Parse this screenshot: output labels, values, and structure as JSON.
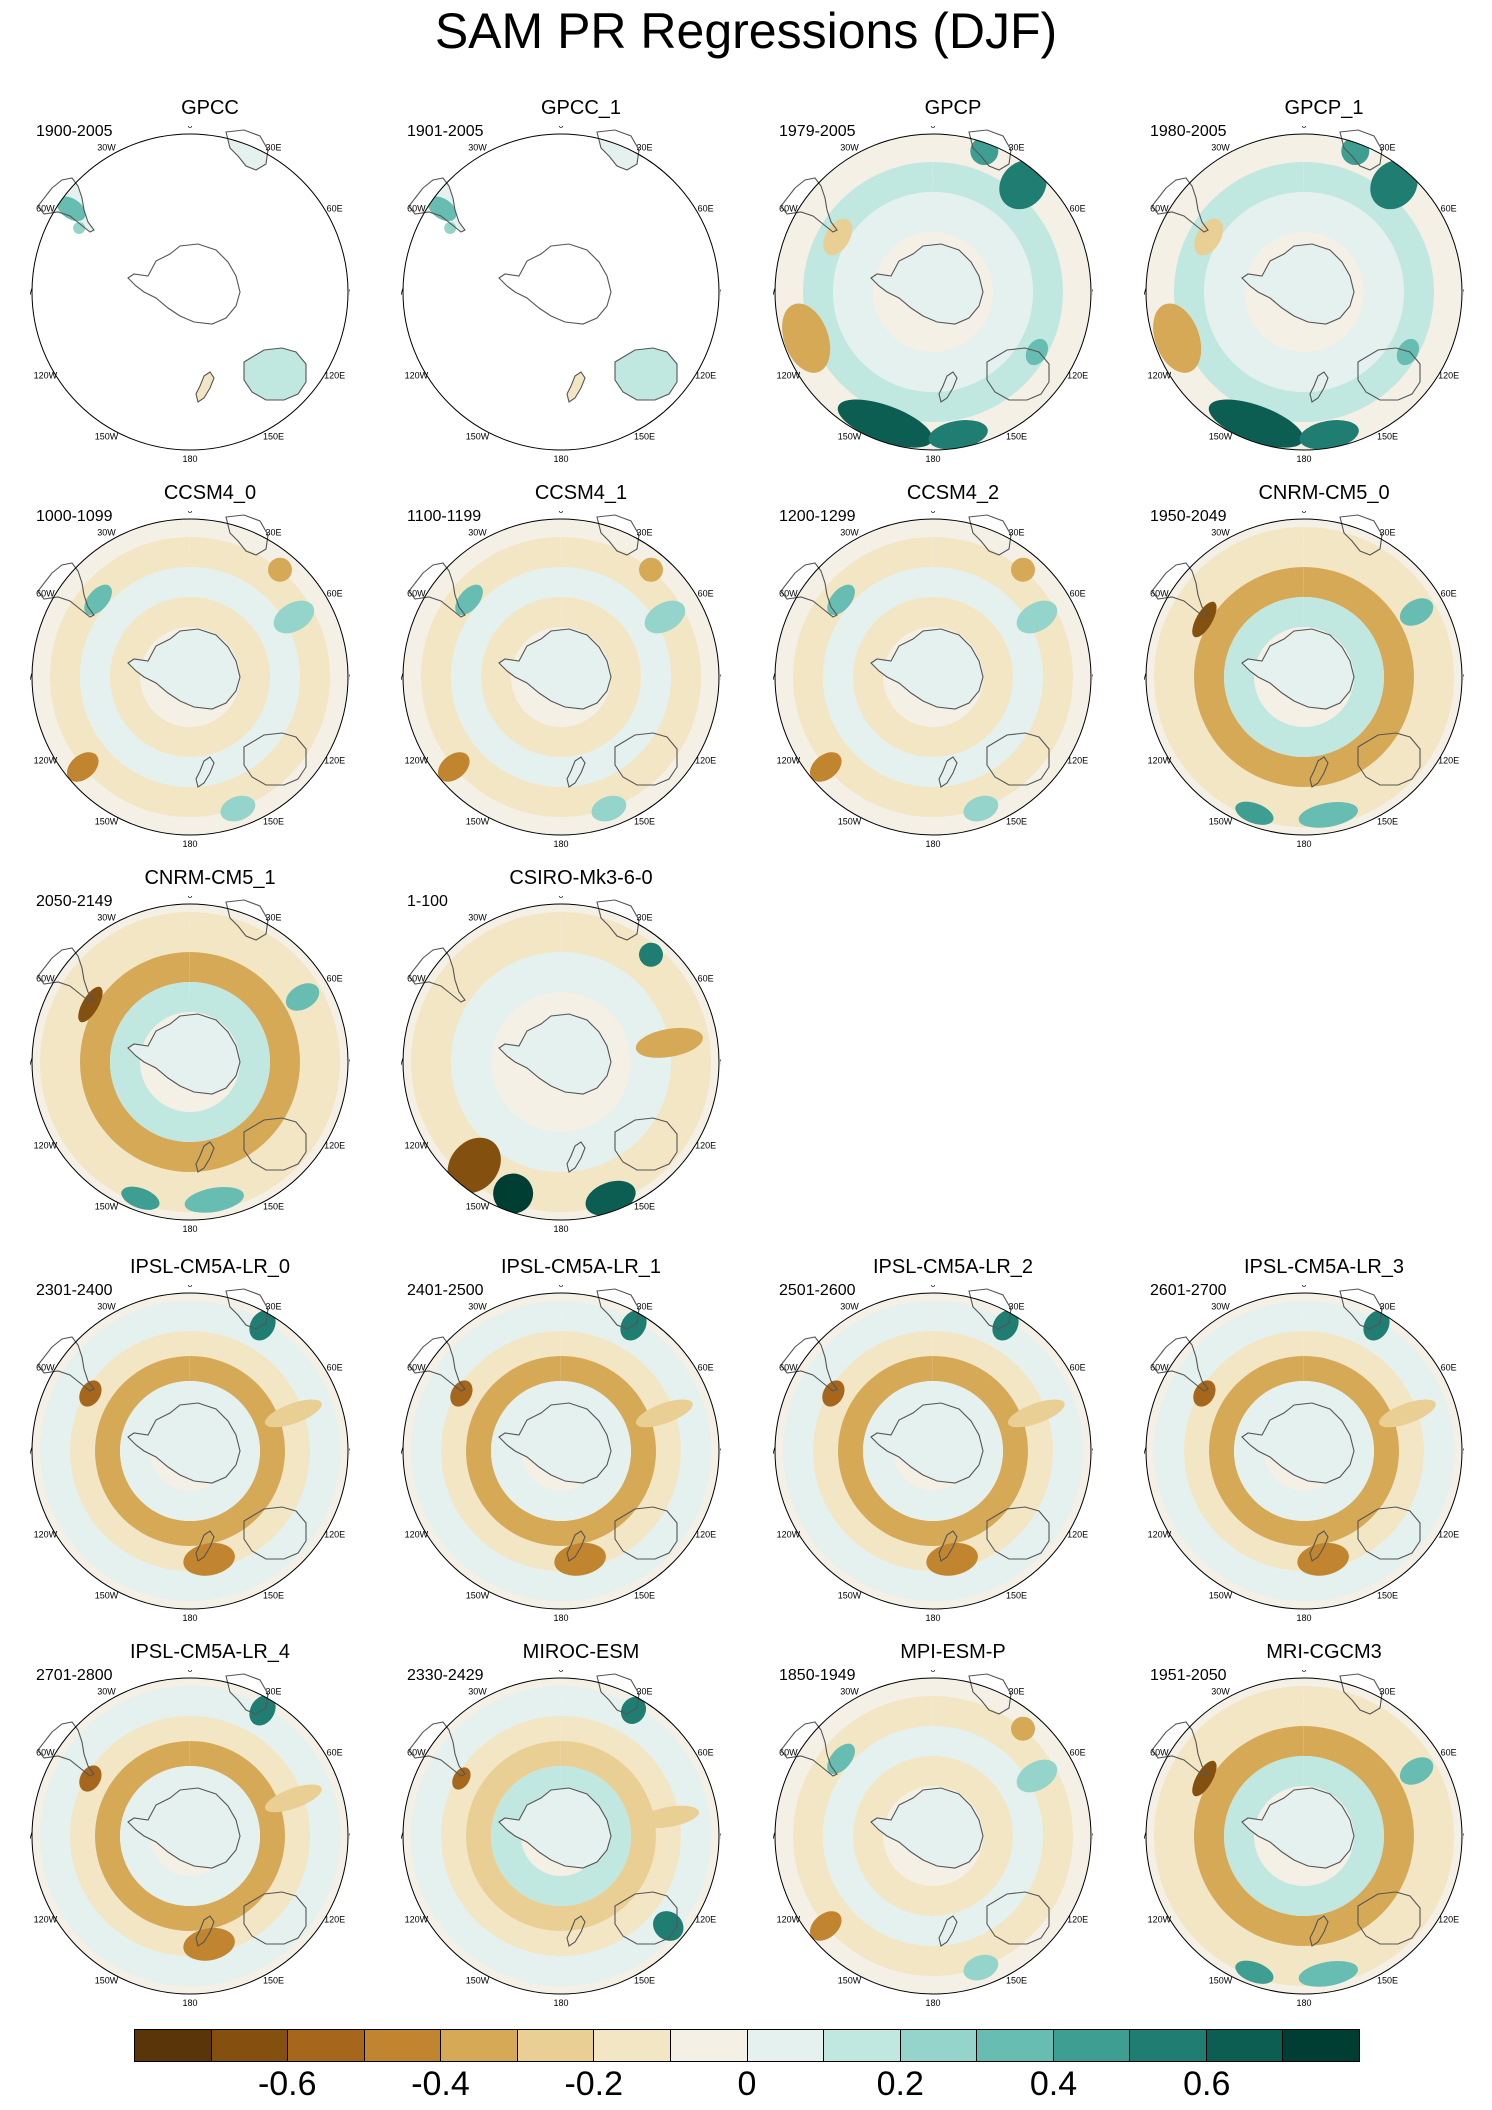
{
  "title": "SAM PR Regressions (DJF)",
  "map_labels": [
    "0",
    "30E",
    "60E",
    "90E",
    "120E",
    "150E",
    "180",
    "150W",
    "120W",
    "90W",
    "60W",
    "30W"
  ],
  "panels": [
    {
      "name": "GPCC",
      "years": "1900-2005",
      "fill": "land",
      "style": 0
    },
    {
      "name": "GPCC_1",
      "years": "1901-2005",
      "fill": "land",
      "style": 0
    },
    {
      "name": "GPCP",
      "years": "1979-2005",
      "fill": "full",
      "style": 1
    },
    {
      "name": "GPCP_1",
      "years": "1980-2005",
      "fill": "full",
      "style": 1
    },
    {
      "name": "CCSM4_0",
      "years": "1000-1099",
      "fill": "full",
      "style": 2
    },
    {
      "name": "CCSM4_1",
      "years": "1100-1199",
      "fill": "full",
      "style": 2
    },
    {
      "name": "CCSM4_2",
      "years": "1200-1299",
      "fill": "full",
      "style": 2
    },
    {
      "name": "CNRM-CM5_0",
      "years": "1950-2049",
      "fill": "full",
      "style": 3
    },
    {
      "name": "CNRM-CM5_1",
      "years": "2050-2149",
      "fill": "full",
      "style": 3
    },
    {
      "name": "CSIRO-Mk3-6-0",
      "years": "1-100",
      "fill": "full",
      "style": 4
    },
    {
      "name": "IPSL-CM5A-LR_0",
      "years": "2301-2400",
      "fill": "full",
      "style": 5
    },
    {
      "name": "IPSL-CM5A-LR_1",
      "years": "2401-2500",
      "fill": "full",
      "style": 5
    },
    {
      "name": "IPSL-CM5A-LR_2",
      "years": "2501-2600",
      "fill": "full",
      "style": 5
    },
    {
      "name": "IPSL-CM5A-LR_3",
      "years": "2601-2700",
      "fill": "full",
      "style": 5
    },
    {
      "name": "IPSL-CM5A-LR_4",
      "years": "2701-2800",
      "fill": "full",
      "style": 5
    },
    {
      "name": "MIROC-ESM",
      "years": "2330-2429",
      "fill": "full",
      "style": 6
    },
    {
      "name": "MPI-ESM-P",
      "years": "1850-1949",
      "fill": "full",
      "style": 2
    },
    {
      "name": "MRI-CGCM3",
      "years": "1951-2050",
      "fill": "full",
      "style": 3
    }
  ],
  "colorbar": {
    "colors": [
      "#5a3509",
      "#84500f",
      "#a6671d",
      "#c1852f",
      "#d6a957",
      "#e9cf93",
      "#f3e6c5",
      "#f4f0e6",
      "#e4f1ee",
      "#c1e7e1",
      "#94d4ca",
      "#67bdb1",
      "#3e9e91",
      "#1f7d72",
      "#0c5e52",
      "#003d33"
    ],
    "tick_labels": [
      "-0.6",
      "-0.4",
      "-0.2",
      "0",
      "0.2",
      "0.4",
      "0.6"
    ],
    "tick_values": [
      -0.6,
      -0.4,
      -0.2,
      0,
      0.2,
      0.4,
      0.6
    ],
    "min": -0.8,
    "max": 0.8
  }
}
